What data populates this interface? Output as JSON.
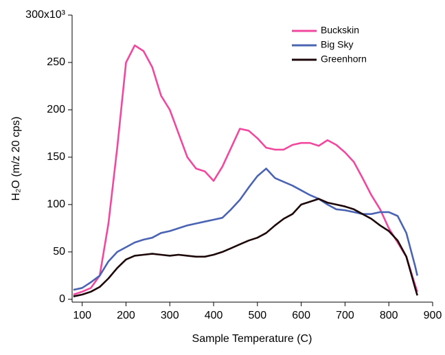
{
  "chart_data": {
    "type": "line",
    "x_label": "Sample Temperature (C)",
    "y_label": "H₂O (m/z 20 cps)",
    "x": [
      80,
      100,
      120,
      140,
      160,
      180,
      200,
      220,
      240,
      260,
      280,
      300,
      320,
      340,
      360,
      380,
      400,
      420,
      440,
      460,
      480,
      500,
      520,
      540,
      560,
      580,
      600,
      620,
      640,
      660,
      680,
      700,
      720,
      740,
      760,
      780,
      800,
      820,
      840,
      860,
      865
    ],
    "series": [
      {
        "name": "Buckskin",
        "color": "#f2479f",
        "values": [
          5,
          8,
          12,
          25,
          80,
          160,
          250,
          268,
          262,
          245,
          215,
          200,
          175,
          150,
          138,
          135,
          125,
          140,
          160,
          180,
          178,
          170,
          160,
          158,
          158,
          163,
          165,
          165,
          162,
          168,
          163,
          155,
          145,
          128,
          110,
          95,
          75,
          60,
          45,
          15,
          8
        ]
      },
      {
        "name": "Big Sky",
        "color": "#4a63b3",
        "values": [
          10,
          12,
          18,
          25,
          40,
          50,
          55,
          60,
          63,
          65,
          70,
          72,
          75,
          78,
          80,
          82,
          84,
          86,
          95,
          105,
          118,
          130,
          138,
          128,
          124,
          120,
          115,
          110,
          106,
          100,
          95,
          94,
          92,
          90,
          90,
          92,
          92,
          88,
          70,
          35,
          25
        ]
      },
      {
        "name": "Greenhorn",
        "color": "#1c0608",
        "values": [
          3,
          5,
          8,
          13,
          22,
          33,
          42,
          46,
          47,
          48,
          47,
          46,
          47,
          46,
          45,
          45,
          47,
          50,
          54,
          58,
          62,
          65,
          70,
          78,
          85,
          90,
          100,
          103,
          106,
          102,
          100,
          98,
          95,
          90,
          85,
          78,
          72,
          62,
          45,
          12,
          4
        ]
      }
    ],
    "xlim": [
      77,
      900
    ],
    "xticks": [
      100,
      200,
      300,
      400,
      500,
      600,
      700,
      800,
      900
    ],
    "ylim": [
      -3,
      300
    ],
    "yticks": [
      0,
      50,
      100,
      150,
      200,
      250,
      {
        "value": 300,
        "label": "300x10³"
      }
    ],
    "legend": "top-right"
  }
}
